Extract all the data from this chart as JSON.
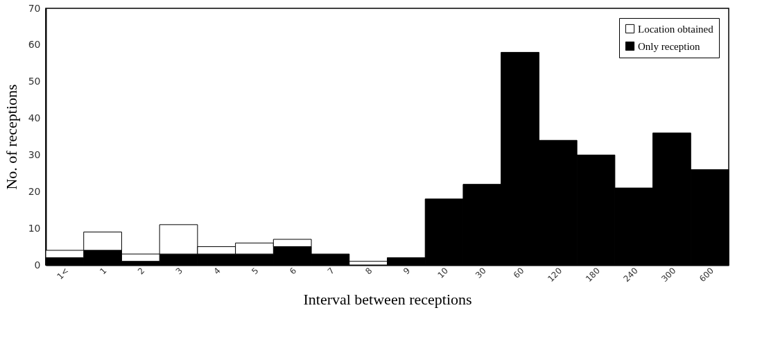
{
  "chart_data": {
    "type": "bar",
    "stacked": true,
    "xlabel": "Interval between receptions",
    "ylabel": "No. of receptions",
    "categories": [
      "1<",
      "1",
      "2",
      "3",
      "4",
      "5",
      "6",
      "7",
      "8",
      "9",
      "10",
      "30",
      "60",
      "120",
      "180",
      "240",
      "300",
      "600"
    ],
    "series": [
      {
        "name": "Only reception",
        "color": "#000000",
        "values": [
          2,
          4,
          1,
          3,
          3,
          3,
          5,
          3,
          0,
          2,
          18,
          22,
          58,
          34,
          30,
          21,
          36,
          26
        ]
      },
      {
        "name": "Location obtained",
        "color": "#ffffff",
        "values": [
          2,
          5,
          2,
          8,
          2,
          3,
          2,
          0,
          1,
          0,
          0,
          0,
          0,
          0,
          0,
          0,
          0,
          0
        ]
      }
    ],
    "ylim": [
      0,
      70
    ],
    "yticks": [
      0,
      10,
      20,
      30,
      40,
      50,
      60,
      70
    ],
    "grid": false,
    "legend": "top right"
  }
}
